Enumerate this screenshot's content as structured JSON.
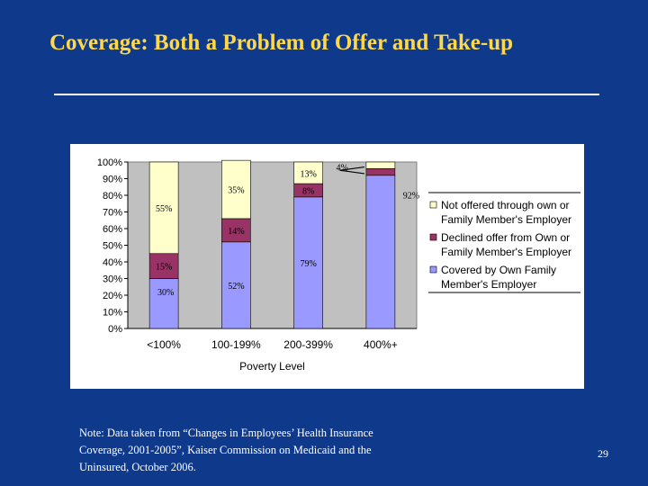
{
  "title": "Coverage: Both a Problem of Offer and Take-up",
  "note": "Note: Data taken from “Changes in Employees’ Health Insurance Coverage, 2001-2005”, Kaiser Commission on Medicaid and the Uninsured, October 2006.",
  "page_number": "29",
  "colors": {
    "background": "#0f3a8c",
    "title": "#ffd84a",
    "covered": "#9999ff",
    "declined": "#993366",
    "not_offered": "#ffffcc"
  },
  "chart_data": {
    "type": "bar",
    "stacked": true,
    "title": "",
    "xlabel": "Poverty Level",
    "ylabel": "",
    "ylim": [
      0,
      100
    ],
    "yticks": [
      0,
      10,
      20,
      30,
      40,
      50,
      60,
      70,
      80,
      90,
      100
    ],
    "ytick_labels": [
      "0%",
      "10%",
      "20%",
      "30%",
      "40%",
      "50%",
      "60%",
      "70%",
      "80%",
      "90%",
      "100%"
    ],
    "categories": [
      "<100%",
      "100-199%",
      "200-399%",
      "400%+"
    ],
    "series": [
      {
        "name": "Covered by Own Family Member's Employer",
        "color": "#9999ff",
        "values": [
          30,
          52,
          79,
          92
        ],
        "labels": [
          "30%",
          "52%",
          "79%",
          "92%"
        ]
      },
      {
        "name": "Declined offer from Own or Family Member's Employer",
        "color": "#993366",
        "values": [
          15,
          14,
          8,
          4
        ],
        "labels": [
          "15%",
          "14%",
          "8%",
          "4%"
        ]
      },
      {
        "name": "Not offered through own or Family Member's Employer",
        "color": "#ffffcc",
        "values": [
          55,
          35,
          13,
          4
        ],
        "labels": [
          "55%",
          "35%",
          "13%",
          ""
        ]
      }
    ],
    "legend": [
      {
        "line1": "Not offered through own or",
        "line2": "Family Member's Employer",
        "series": 2
      },
      {
        "line1": "Declined offer from Own or",
        "line2": "Family Member's Employer",
        "series": 1
      },
      {
        "line1": "Covered by Own Family",
        "line2": "Member's Employer",
        "series": 0
      }
    ],
    "legend_position": "right",
    "grid": false
  }
}
